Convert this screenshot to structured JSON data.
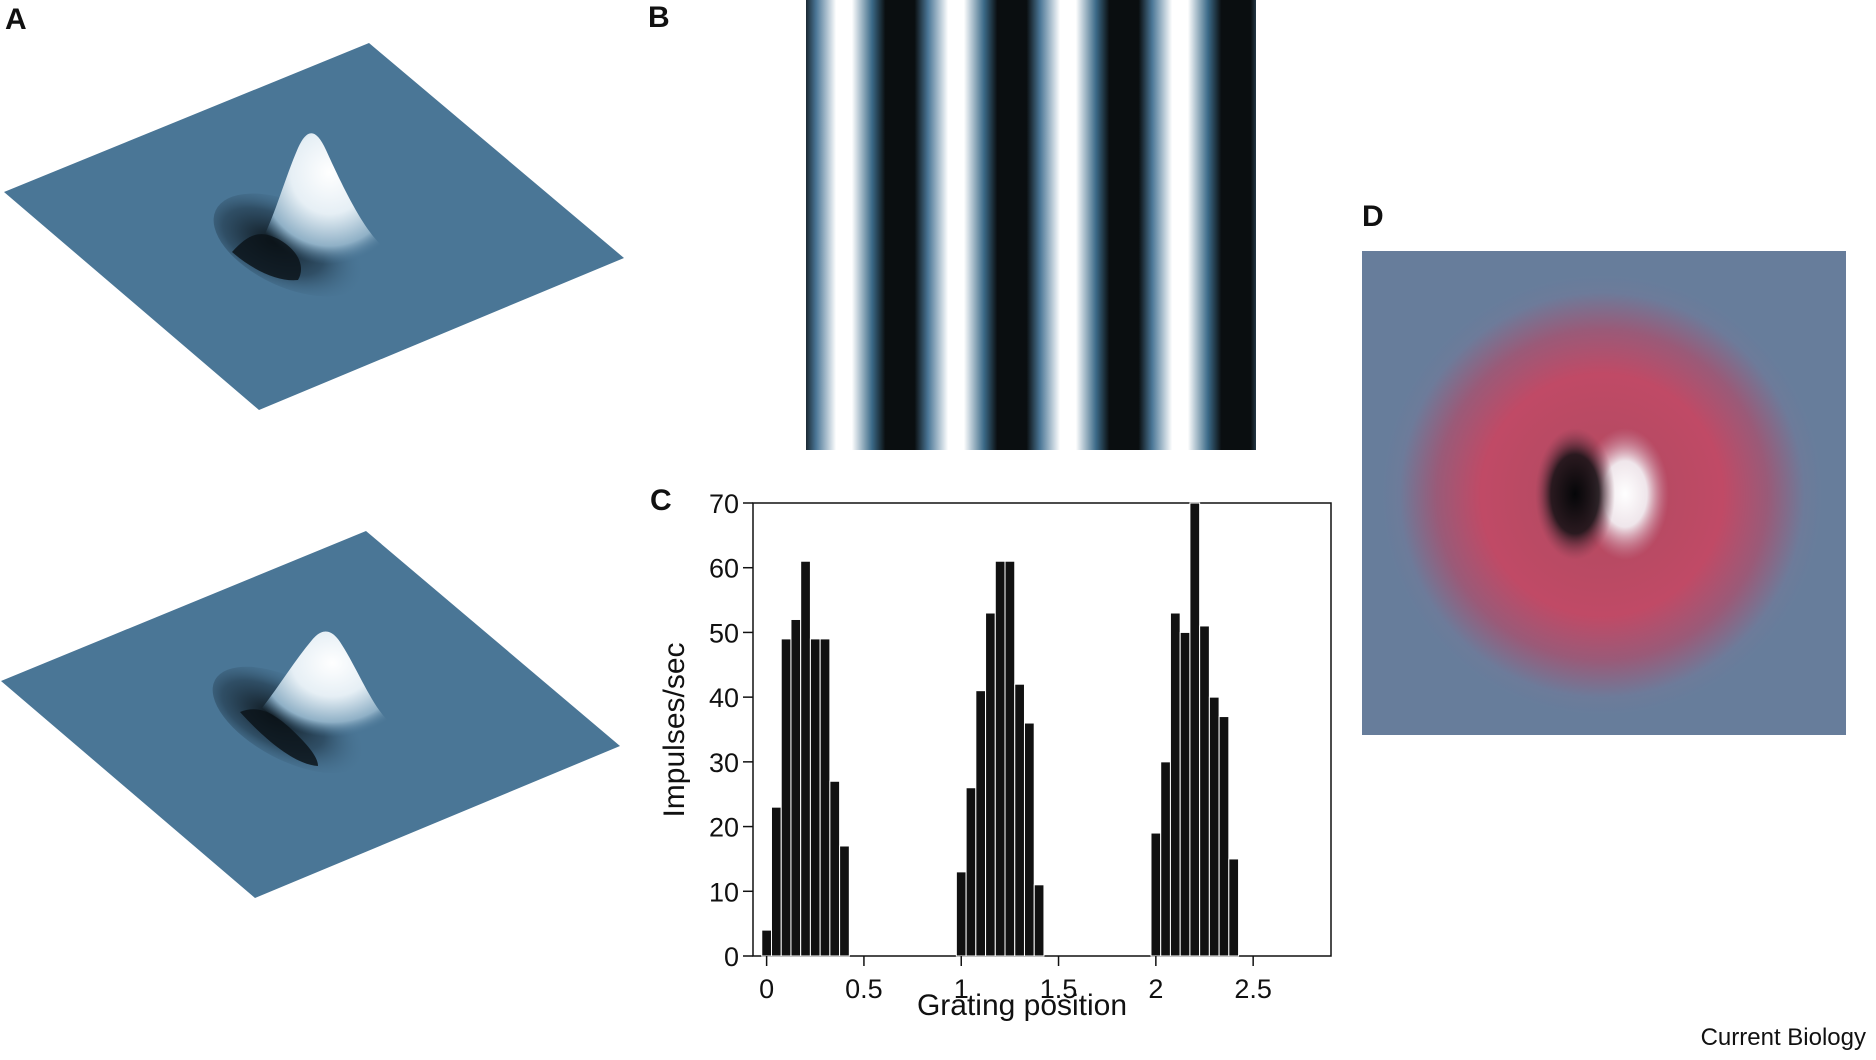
{
  "panels": {
    "a": "A",
    "b": "B",
    "c": "C",
    "d": "D"
  },
  "credit": "Current Biology",
  "colors": {
    "surface": "#4a7696",
    "grating_dark": "#0a0e10",
    "grating_light": "#ffffff",
    "grating_mid": "#3b6a88",
    "bar": "#111111",
    "d_background": "#677d9b",
    "d_ring": "#c04a66"
  },
  "chart_data": {
    "type": "bar",
    "xlabel": "Grating position",
    "ylabel": "Impulses/sec",
    "xlim": [
      -0.07,
      2.9
    ],
    "ylim": [
      0,
      70
    ],
    "xticks": [
      0,
      0.5,
      1,
      1.5,
      2,
      2.5
    ],
    "xtick_labels": [
      "0",
      "0.5",
      "1",
      "1.5",
      "2",
      "2.5"
    ],
    "yticks": [
      0,
      10,
      20,
      30,
      40,
      50,
      60,
      70
    ],
    "ytick_labels": [
      "0",
      "10",
      "20",
      "30",
      "40",
      "50",
      "60",
      "70"
    ],
    "bar_width": 0.05,
    "bars": [
      {
        "x": 0.0,
        "value": 4
      },
      {
        "x": 0.05,
        "value": 23
      },
      {
        "x": 0.1,
        "value": 49
      },
      {
        "x": 0.15,
        "value": 52
      },
      {
        "x": 0.2,
        "value": 61
      },
      {
        "x": 0.25,
        "value": 49
      },
      {
        "x": 0.3,
        "value": 49
      },
      {
        "x": 0.35,
        "value": 27
      },
      {
        "x": 0.4,
        "value": 17
      },
      {
        "x": 1.0,
        "value": 13
      },
      {
        "x": 1.05,
        "value": 26
      },
      {
        "x": 1.1,
        "value": 41
      },
      {
        "x": 1.15,
        "value": 53
      },
      {
        "x": 1.2,
        "value": 61
      },
      {
        "x": 1.25,
        "value": 61
      },
      {
        "x": 1.3,
        "value": 42
      },
      {
        "x": 1.35,
        "value": 36
      },
      {
        "x": 1.4,
        "value": 11
      },
      {
        "x": 2.0,
        "value": 19
      },
      {
        "x": 2.05,
        "value": 30
      },
      {
        "x": 2.1,
        "value": 53
      },
      {
        "x": 2.15,
        "value": 50
      },
      {
        "x": 2.2,
        "value": 70
      },
      {
        "x": 2.25,
        "value": 51
      },
      {
        "x": 2.3,
        "value": 40
      },
      {
        "x": 2.35,
        "value": 37
      },
      {
        "x": 2.4,
        "value": 15
      }
    ]
  }
}
